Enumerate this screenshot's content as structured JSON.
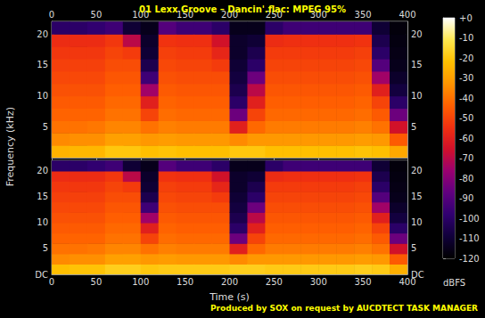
{
  "chart_data": {
    "type": "heatmap",
    "title": "01 Lexx Groove – Dancin'.flac: MPEG 95%",
    "x_label": "Time (s)",
    "y_label": "Frequency (kHz)",
    "annotation": "Produced by SOX on request by AUCDTECT TASK MANAGER",
    "xlim": [
      0,
      400
    ],
    "xticks": [
      0,
      50,
      100,
      150,
      200,
      250,
      300,
      350,
      400
    ],
    "ylim": [
      0,
      22.05
    ],
    "x_bins": [
      0,
      20,
      40,
      60,
      80,
      100,
      120,
      140,
      160,
      180,
      200,
      220,
      240,
      260,
      280,
      300,
      320,
      340,
      360,
      380,
      400
    ],
    "y_bins": [
      0,
      2,
      4,
      6,
      8,
      10,
      12,
      14,
      16,
      18,
      20,
      22
    ],
    "colorbar": {
      "label": "dBFS",
      "range": [
        -120,
        0
      ],
      "ticks": [
        {
          "value": 0,
          "label": "+0"
        },
        -10,
        -20,
        -30,
        -40,
        -50,
        -60,
        -70,
        -80,
        -90,
        -100,
        -110,
        -120
      ],
      "colors": [
        "#000000",
        "#10003a",
        "#300070",
        "#600080",
        "#9a0070",
        "#d0102a",
        "#f03010",
        "#ff6000",
        "#ff9500",
        "#ffc000",
        "#ffe850",
        "#ffffff"
      ]
    },
    "panels": [
      {
        "yticks": [
          5,
          10,
          15,
          20
        ],
        "cells": [
          [
            -25,
            -35,
            -40,
            -43,
            -45,
            -47,
            -49,
            -51,
            -53,
            -56,
            -100
          ],
          [
            -24,
            -34,
            -40,
            -43,
            -45,
            -47,
            -49,
            -51,
            -53,
            -56,
            -100
          ],
          [
            -24,
            -34,
            -39,
            -43,
            -45,
            -47,
            -49,
            -51,
            -53,
            -56,
            -98
          ],
          [
            -20,
            -30,
            -36,
            -40,
            -42,
            -44,
            -46,
            -48,
            -50,
            -53,
            -95
          ],
          [
            -20,
            -30,
            -36,
            -40,
            -42,
            -44,
            -46,
            -48,
            -52,
            -70,
            -110
          ],
          [
            -22,
            -32,
            -40,
            -50,
            -60,
            -75,
            -95,
            -105,
            -110,
            -112,
            -115
          ],
          [
            -21,
            -31,
            -37,
            -41,
            -43,
            -45,
            -47,
            -49,
            -51,
            -54,
            -90
          ],
          [
            -22,
            -32,
            -38,
            -42,
            -44,
            -46,
            -48,
            -50,
            -52,
            -55,
            -95
          ],
          [
            -22,
            -32,
            -38,
            -42,
            -44,
            -46,
            -48,
            -50,
            -52,
            -55,
            -95
          ],
          [
            -22,
            -32,
            -38,
            -42,
            -44,
            -46,
            -48,
            -52,
            -58,
            -65,
            -100
          ],
          [
            -20,
            -35,
            -60,
            -85,
            -100,
            -105,
            -108,
            -110,
            -112,
            -112,
            -115
          ],
          [
            -20,
            -32,
            -42,
            -50,
            -60,
            -70,
            -85,
            -100,
            -105,
            -110,
            -115
          ],
          [
            -22,
            -32,
            -38,
            -42,
            -44,
            -46,
            -48,
            -50,
            -52,
            -56,
            -100
          ],
          [
            -22,
            -32,
            -38,
            -42,
            -44,
            -46,
            -48,
            -50,
            -52,
            -55,
            -95
          ],
          [
            -22,
            -32,
            -38,
            -42,
            -44,
            -46,
            -48,
            -50,
            -52,
            -55,
            -95
          ],
          [
            -22,
            -32,
            -38,
            -42,
            -44,
            -46,
            -48,
            -50,
            -52,
            -55,
            -95
          ],
          [
            -22,
            -32,
            -38,
            -42,
            -44,
            -46,
            -48,
            -50,
            -52,
            -55,
            -95
          ],
          [
            -21,
            -31,
            -37,
            -41,
            -43,
            -45,
            -47,
            -49,
            -51,
            -54,
            -95
          ],
          [
            -22,
            -32,
            -40,
            -45,
            -50,
            -60,
            -75,
            -90,
            -100,
            -105,
            -110
          ],
          [
            -28,
            -45,
            -65,
            -85,
            -100,
            -108,
            -112,
            -115,
            -116,
            -117,
            -118
          ]
        ]
      },
      {
        "yticks": [
          {
            "value": 0,
            "label": "DC"
          },
          5,
          10,
          15,
          20
        ],
        "cells": [
          [
            -22,
            -35,
            -40,
            -43,
            -45,
            -47,
            -49,
            -51,
            -53,
            -56,
            -100
          ],
          [
            -21,
            -34,
            -40,
            -43,
            -45,
            -47,
            -49,
            -51,
            -53,
            -56,
            -100
          ],
          [
            -21,
            -34,
            -39,
            -43,
            -45,
            -47,
            -49,
            -51,
            -53,
            -56,
            -98
          ],
          [
            -18,
            -30,
            -36,
            -40,
            -42,
            -44,
            -46,
            -48,
            -50,
            -53,
            -95
          ],
          [
            -18,
            -30,
            -36,
            -40,
            -42,
            -44,
            -46,
            -48,
            -52,
            -70,
            -110
          ],
          [
            -20,
            -32,
            -40,
            -50,
            -60,
            -75,
            -95,
            -105,
            -110,
            -112,
            -115
          ],
          [
            -19,
            -31,
            -37,
            -41,
            -43,
            -45,
            -47,
            -49,
            -51,
            -54,
            -90
          ],
          [
            -19,
            -32,
            -38,
            -42,
            -44,
            -46,
            -48,
            -50,
            -52,
            -55,
            -95
          ],
          [
            -19,
            -32,
            -38,
            -42,
            -44,
            -46,
            -48,
            -50,
            -52,
            -55,
            -95
          ],
          [
            -19,
            -32,
            -38,
            -42,
            -44,
            -46,
            -48,
            -52,
            -58,
            -65,
            -100
          ],
          [
            -18,
            -35,
            -60,
            -85,
            -100,
            -105,
            -108,
            -110,
            -112,
            -112,
            -115
          ],
          [
            -18,
            -32,
            -42,
            -50,
            -60,
            -70,
            -85,
            -100,
            -105,
            -110,
            -115
          ],
          [
            -19,
            -32,
            -38,
            -42,
            -44,
            -46,
            -48,
            -50,
            -52,
            -56,
            -100
          ],
          [
            -19,
            -32,
            -38,
            -42,
            -44,
            -46,
            -48,
            -50,
            -52,
            -55,
            -95
          ],
          [
            -19,
            -32,
            -38,
            -42,
            -44,
            -46,
            -48,
            -50,
            -52,
            -55,
            -95
          ],
          [
            -19,
            -32,
            -38,
            -42,
            -44,
            -46,
            -48,
            -50,
            -52,
            -55,
            -95
          ],
          [
            -19,
            -32,
            -38,
            -42,
            -44,
            -46,
            -48,
            -50,
            -52,
            -55,
            -95
          ],
          [
            -18,
            -31,
            -37,
            -41,
            -43,
            -45,
            -47,
            -49,
            -51,
            -54,
            -95
          ],
          [
            -19,
            -32,
            -40,
            -45,
            -50,
            -60,
            -75,
            -90,
            -100,
            -105,
            -110
          ],
          [
            -26,
            -45,
            -65,
            -85,
            -100,
            -108,
            -112,
            -115,
            -116,
            -117,
            -118
          ]
        ]
      }
    ]
  }
}
